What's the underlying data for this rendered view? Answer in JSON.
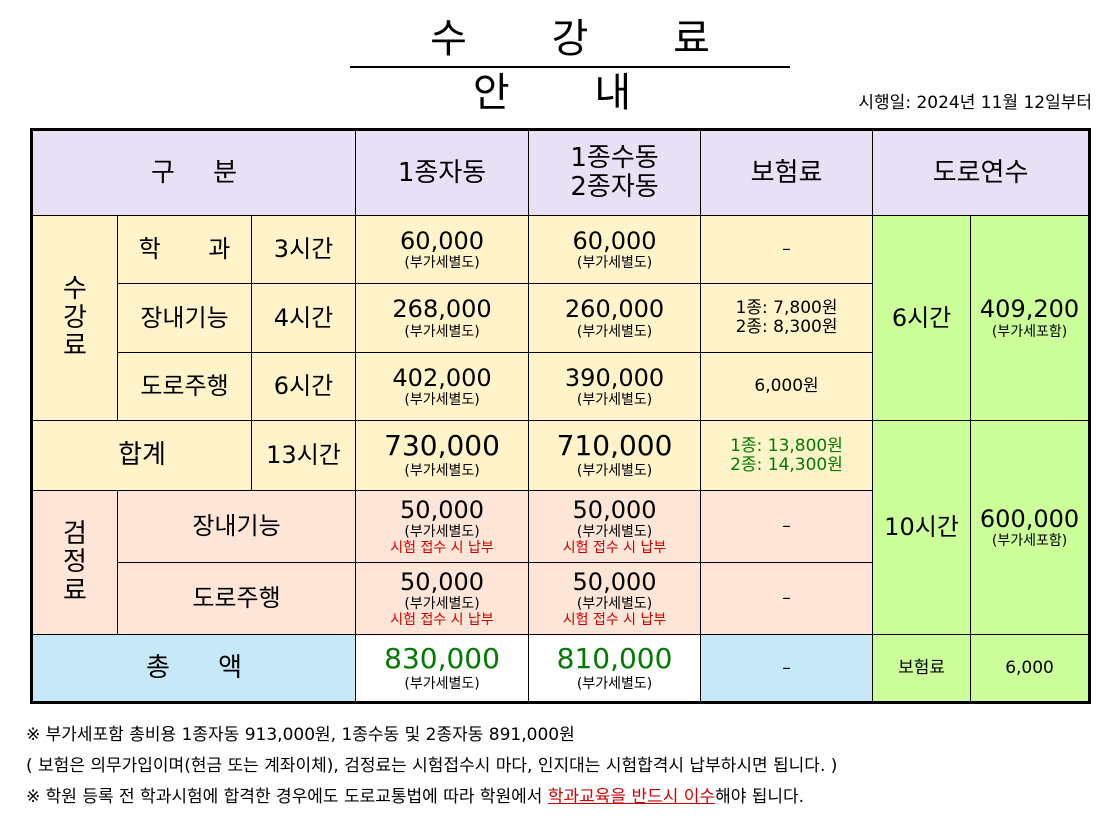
{
  "title": "수 강 료 안 내",
  "effective_date": "시행일: 2024년 11월 12일부터",
  "header": {
    "category": "구 분",
    "col1": "1종자동",
    "col2_line1": "1종수동",
    "col2_line2": "2종자동",
    "insurance": "보험료",
    "road_training": "도로연수"
  },
  "tuition_label": [
    "수",
    "강",
    "료"
  ],
  "rows": {
    "theory": {
      "name": "학 과",
      "hours": "3시간",
      "col1": "60,000",
      "col2": "60,000",
      "insurance": "–"
    },
    "course": {
      "name": "장내기능",
      "hours": "4시간",
      "col1": "268,000",
      "col2": "260,000",
      "insurance_line1": "1종: 7,800원",
      "insurance_line2": "2종: 8,300원"
    },
    "road": {
      "name": "도로주행",
      "hours": "6시간",
      "col1": "402,000",
      "col2": "390,000",
      "insurance": "6,000원"
    }
  },
  "vat_separate": "(부가세별도)",
  "vat_included": "(부가세포함)",
  "subtotal": {
    "label": "합계",
    "hours": "13시간",
    "col1": "730,000",
    "col2": "710,000",
    "insurance_line1": "1종: 13,800원",
    "insurance_line2": "2종: 14,300원"
  },
  "road_training": {
    "short_hours": "6시간",
    "short_price": "409,200",
    "long_hours": "10시간",
    "long_price": "600,000",
    "insurance_label": "보험료",
    "insurance_price": "6,000"
  },
  "exam_label": [
    "검",
    "정",
    "료"
  ],
  "exam": {
    "course": {
      "name": "장내기능",
      "col1": "50,000",
      "col2": "50,000",
      "insurance": "–"
    },
    "road": {
      "name": "도로주행",
      "col1": "50,000",
      "col2": "50,000",
      "insurance": "–"
    },
    "pay_note": "시험 접수 시 납부"
  },
  "total": {
    "label": "총 액",
    "col1": "830,000",
    "col2": "810,000",
    "insurance": "–"
  },
  "notes": {
    "line1": "※ 부가세포함 총비용 1종자동 913,000원, 1종수동 및 2종자동 891,000원",
    "line2": "( 보험은 의무가입이며(현금 또는 계좌이체), 검정료는 시험접수시 마다, 인지대는 시험합격시 납부하시면 됩니다. )",
    "line3_pre": "※ 학원 등록 전 학과시험에 합격한 경우에도 도로교통법에 따라 학원에서 ",
    "line3_highlight": "학과교육을 반드시 이수",
    "line3_post": "해야 됩니다."
  }
}
